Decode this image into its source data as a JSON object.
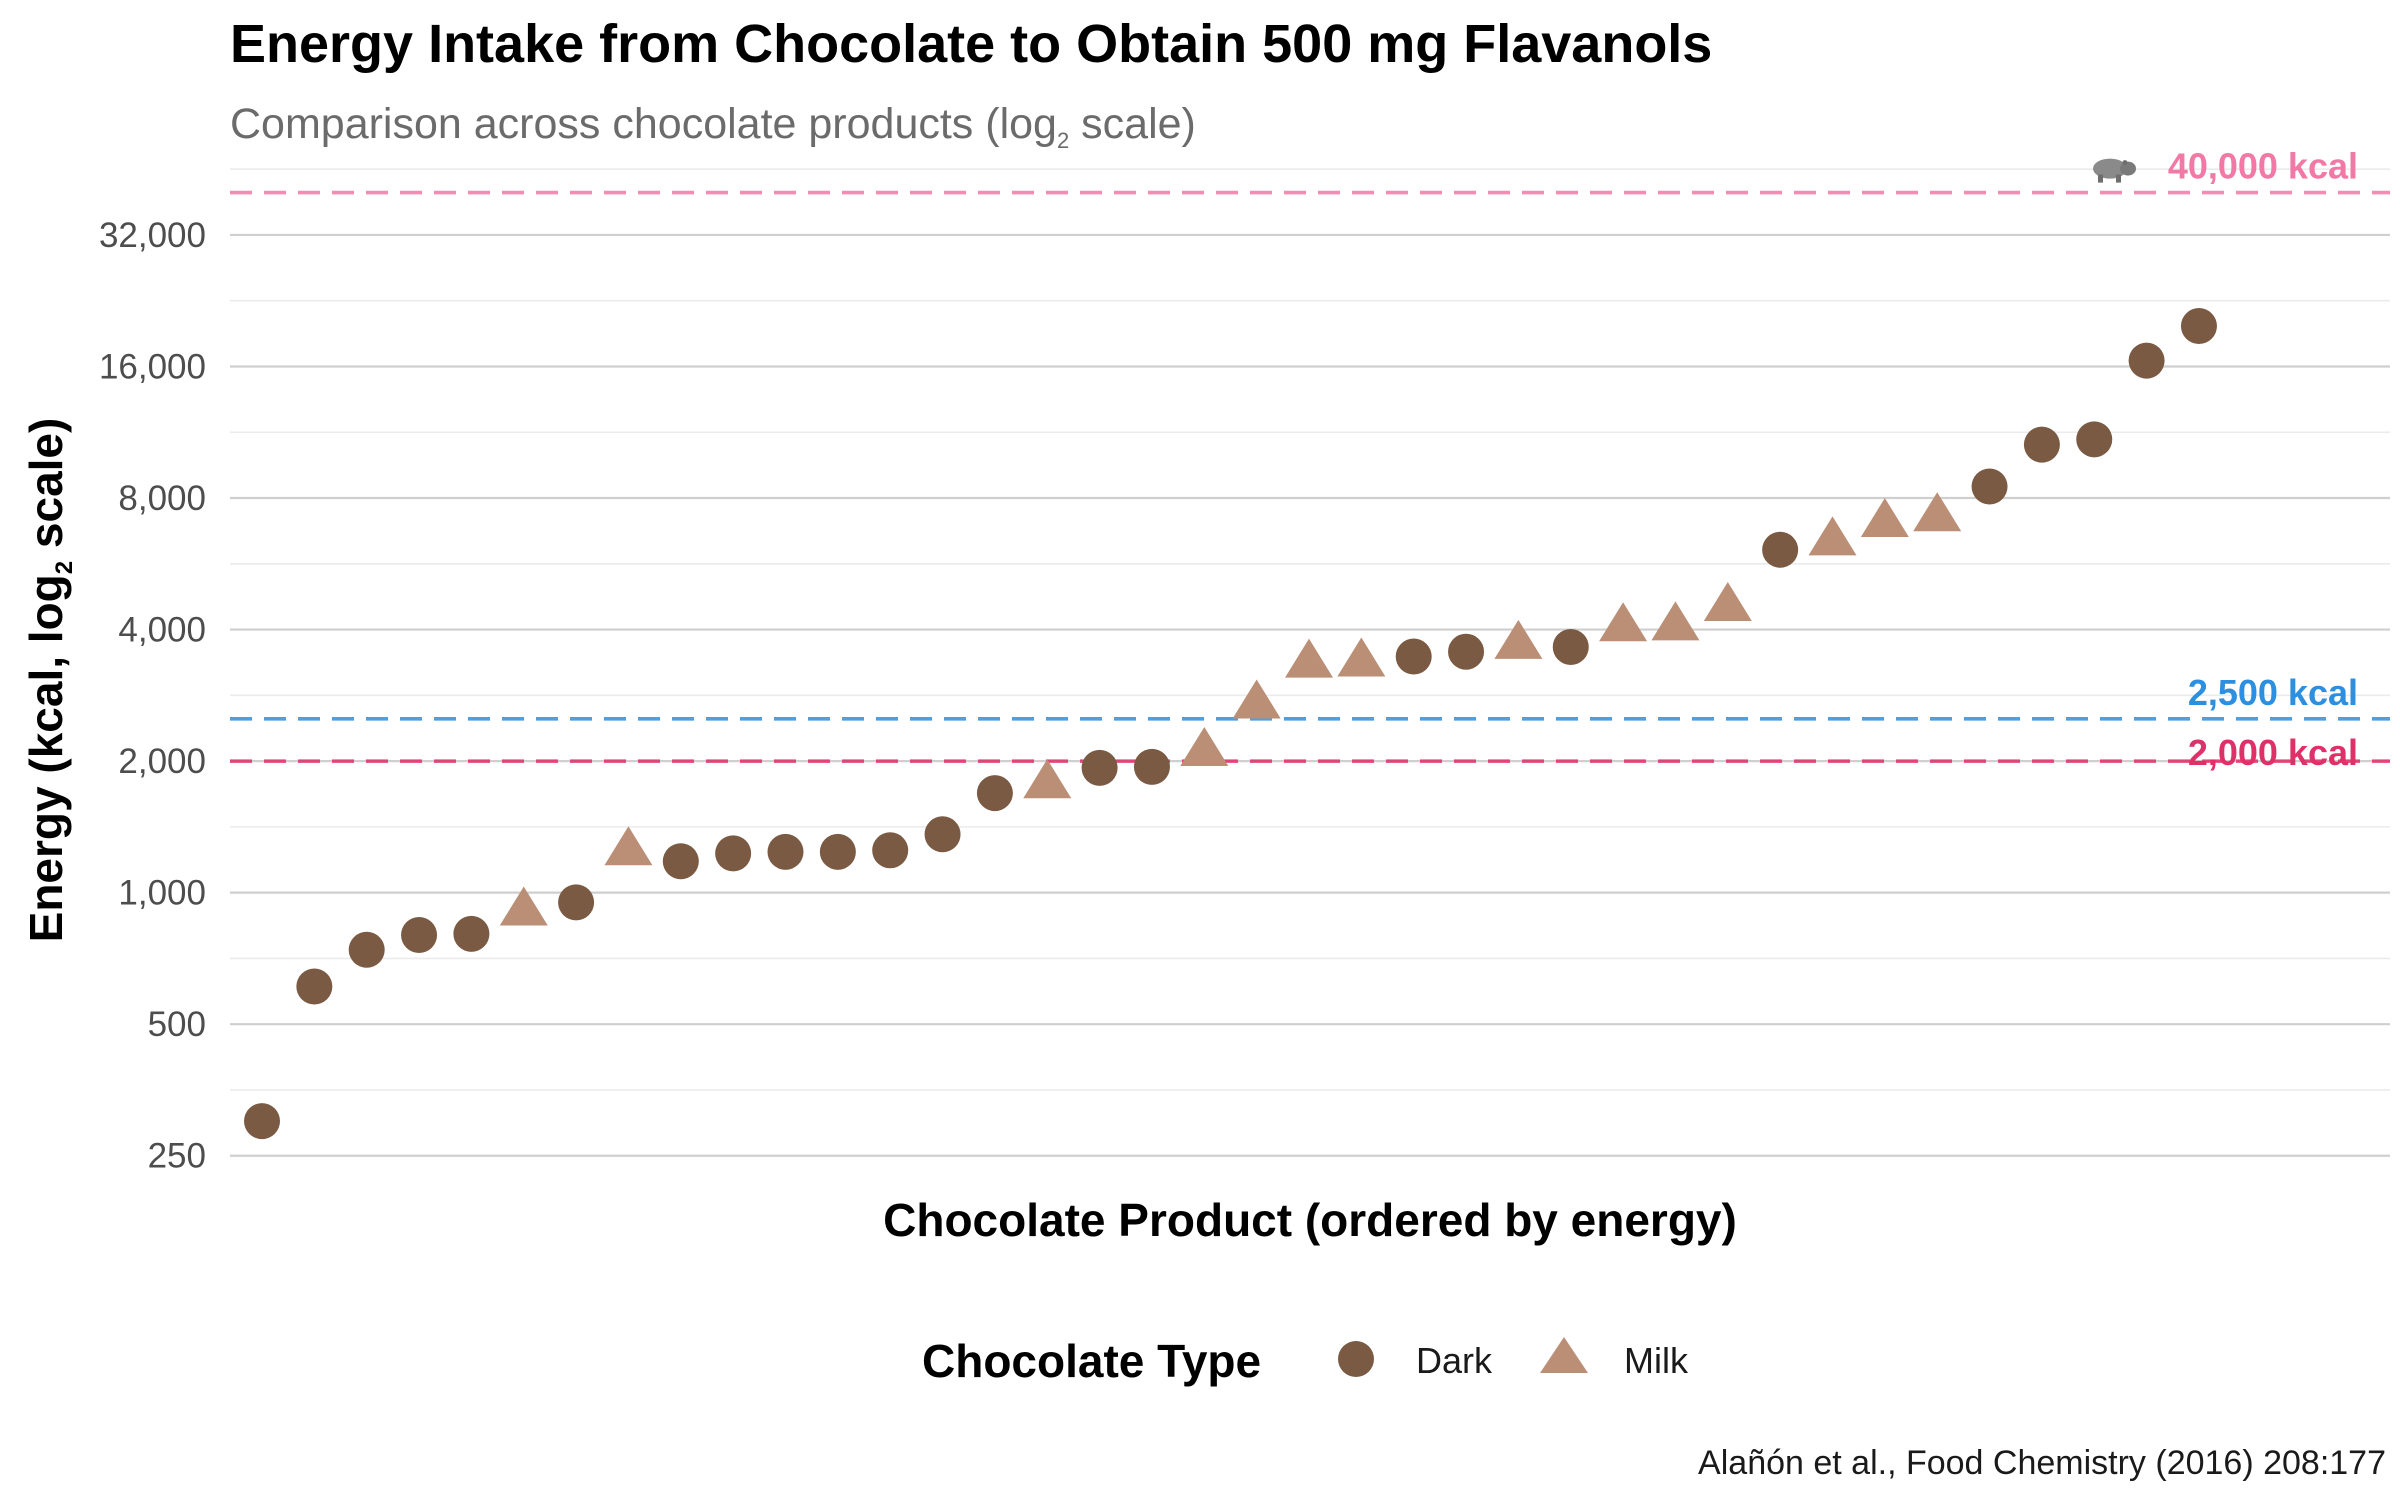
{
  "chart_data": {
    "type": "scatter",
    "title": "Energy Intake from Chocolate to Obtain 500 mg Flavanols",
    "subtitle_main": "Comparison across chocolate products (log",
    "subtitle_sub": "2",
    "subtitle_end": " scale)",
    "xlabel": "Chocolate Product (ordered by energy)",
    "ylabel_main": "Energy (kcal, log",
    "ylabel_sub": "2",
    "ylabel_end": " scale)",
    "y_scale": "log2",
    "ylim": [
      220,
      48000
    ],
    "y_ticks": [
      250,
      500,
      1000,
      2000,
      4000,
      8000,
      16000,
      32000
    ],
    "y_tick_labels": [
      "250",
      "500",
      "1,000",
      "2,000",
      "4,000",
      "8,000",
      "16,000",
      "32,000"
    ],
    "legend": {
      "title": "Chocolate Type",
      "entries": [
        {
          "name": "Dark",
          "shape": "circle",
          "color": "#7a5a43"
        },
        {
          "name": "Milk",
          "shape": "triangle",
          "color": "#bb8f76"
        }
      ]
    },
    "series": [
      {
        "name": "Dark",
        "shape": "circle",
        "color": "#7a5a43",
        "points": [
          {
            "x": 1,
            "y": 300
          },
          {
            "x": 2,
            "y": 610
          },
          {
            "x": 3,
            "y": 740
          },
          {
            "x": 4,
            "y": 800
          },
          {
            "x": 5,
            "y": 805
          },
          {
            "x": 7,
            "y": 950
          },
          {
            "x": 9,
            "y": 1180
          },
          {
            "x": 10,
            "y": 1230
          },
          {
            "x": 11,
            "y": 1240
          },
          {
            "x": 12,
            "y": 1240
          },
          {
            "x": 13,
            "y": 1250
          },
          {
            "x": 14,
            "y": 1360
          },
          {
            "x": 15,
            "y": 1690
          },
          {
            "x": 17,
            "y": 1930
          },
          {
            "x": 18,
            "y": 1940
          },
          {
            "x": 23,
            "y": 3470
          },
          {
            "x": 24,
            "y": 3560
          },
          {
            "x": 26,
            "y": 3650
          },
          {
            "x": 30,
            "y": 6090
          },
          {
            "x": 34,
            "y": 8500
          },
          {
            "x": 35,
            "y": 10600
          },
          {
            "x": 36,
            "y": 10900
          },
          {
            "x": 37,
            "y": 16500
          },
          {
            "x": 38,
            "y": 19800
          }
        ]
      },
      {
        "name": "Milk",
        "shape": "triangle",
        "color": "#bb8f76",
        "points": [
          {
            "x": 6,
            "y": 910
          },
          {
            "x": 8,
            "y": 1250
          },
          {
            "x": 16,
            "y": 1780
          },
          {
            "x": 19,
            "y": 2110
          },
          {
            "x": 20,
            "y": 2710
          },
          {
            "x": 21,
            "y": 3360
          },
          {
            "x": 22,
            "y": 3380
          },
          {
            "x": 25,
            "y": 3710
          },
          {
            "x": 27,
            "y": 4070
          },
          {
            "x": 28,
            "y": 4090
          },
          {
            "x": 29,
            "y": 4530
          },
          {
            "x": 31,
            "y": 6400
          },
          {
            "x": 32,
            "y": 7050
          },
          {
            "x": 33,
            "y": 7270
          }
        ]
      }
    ],
    "reference_lines": [
      {
        "value": 40000,
        "label": "40,000 kcal",
        "icon": "hippo-icon",
        "color": "#f279a5"
      },
      {
        "value": 2500,
        "label": "2,500 kcal",
        "color": "#2d8fdf"
      },
      {
        "value": 2000,
        "label": "2,000 kcal",
        "color": "#e0306a"
      }
    ],
    "caption": "Alañón et al., Food Chemistry (2016) 208:177"
  }
}
